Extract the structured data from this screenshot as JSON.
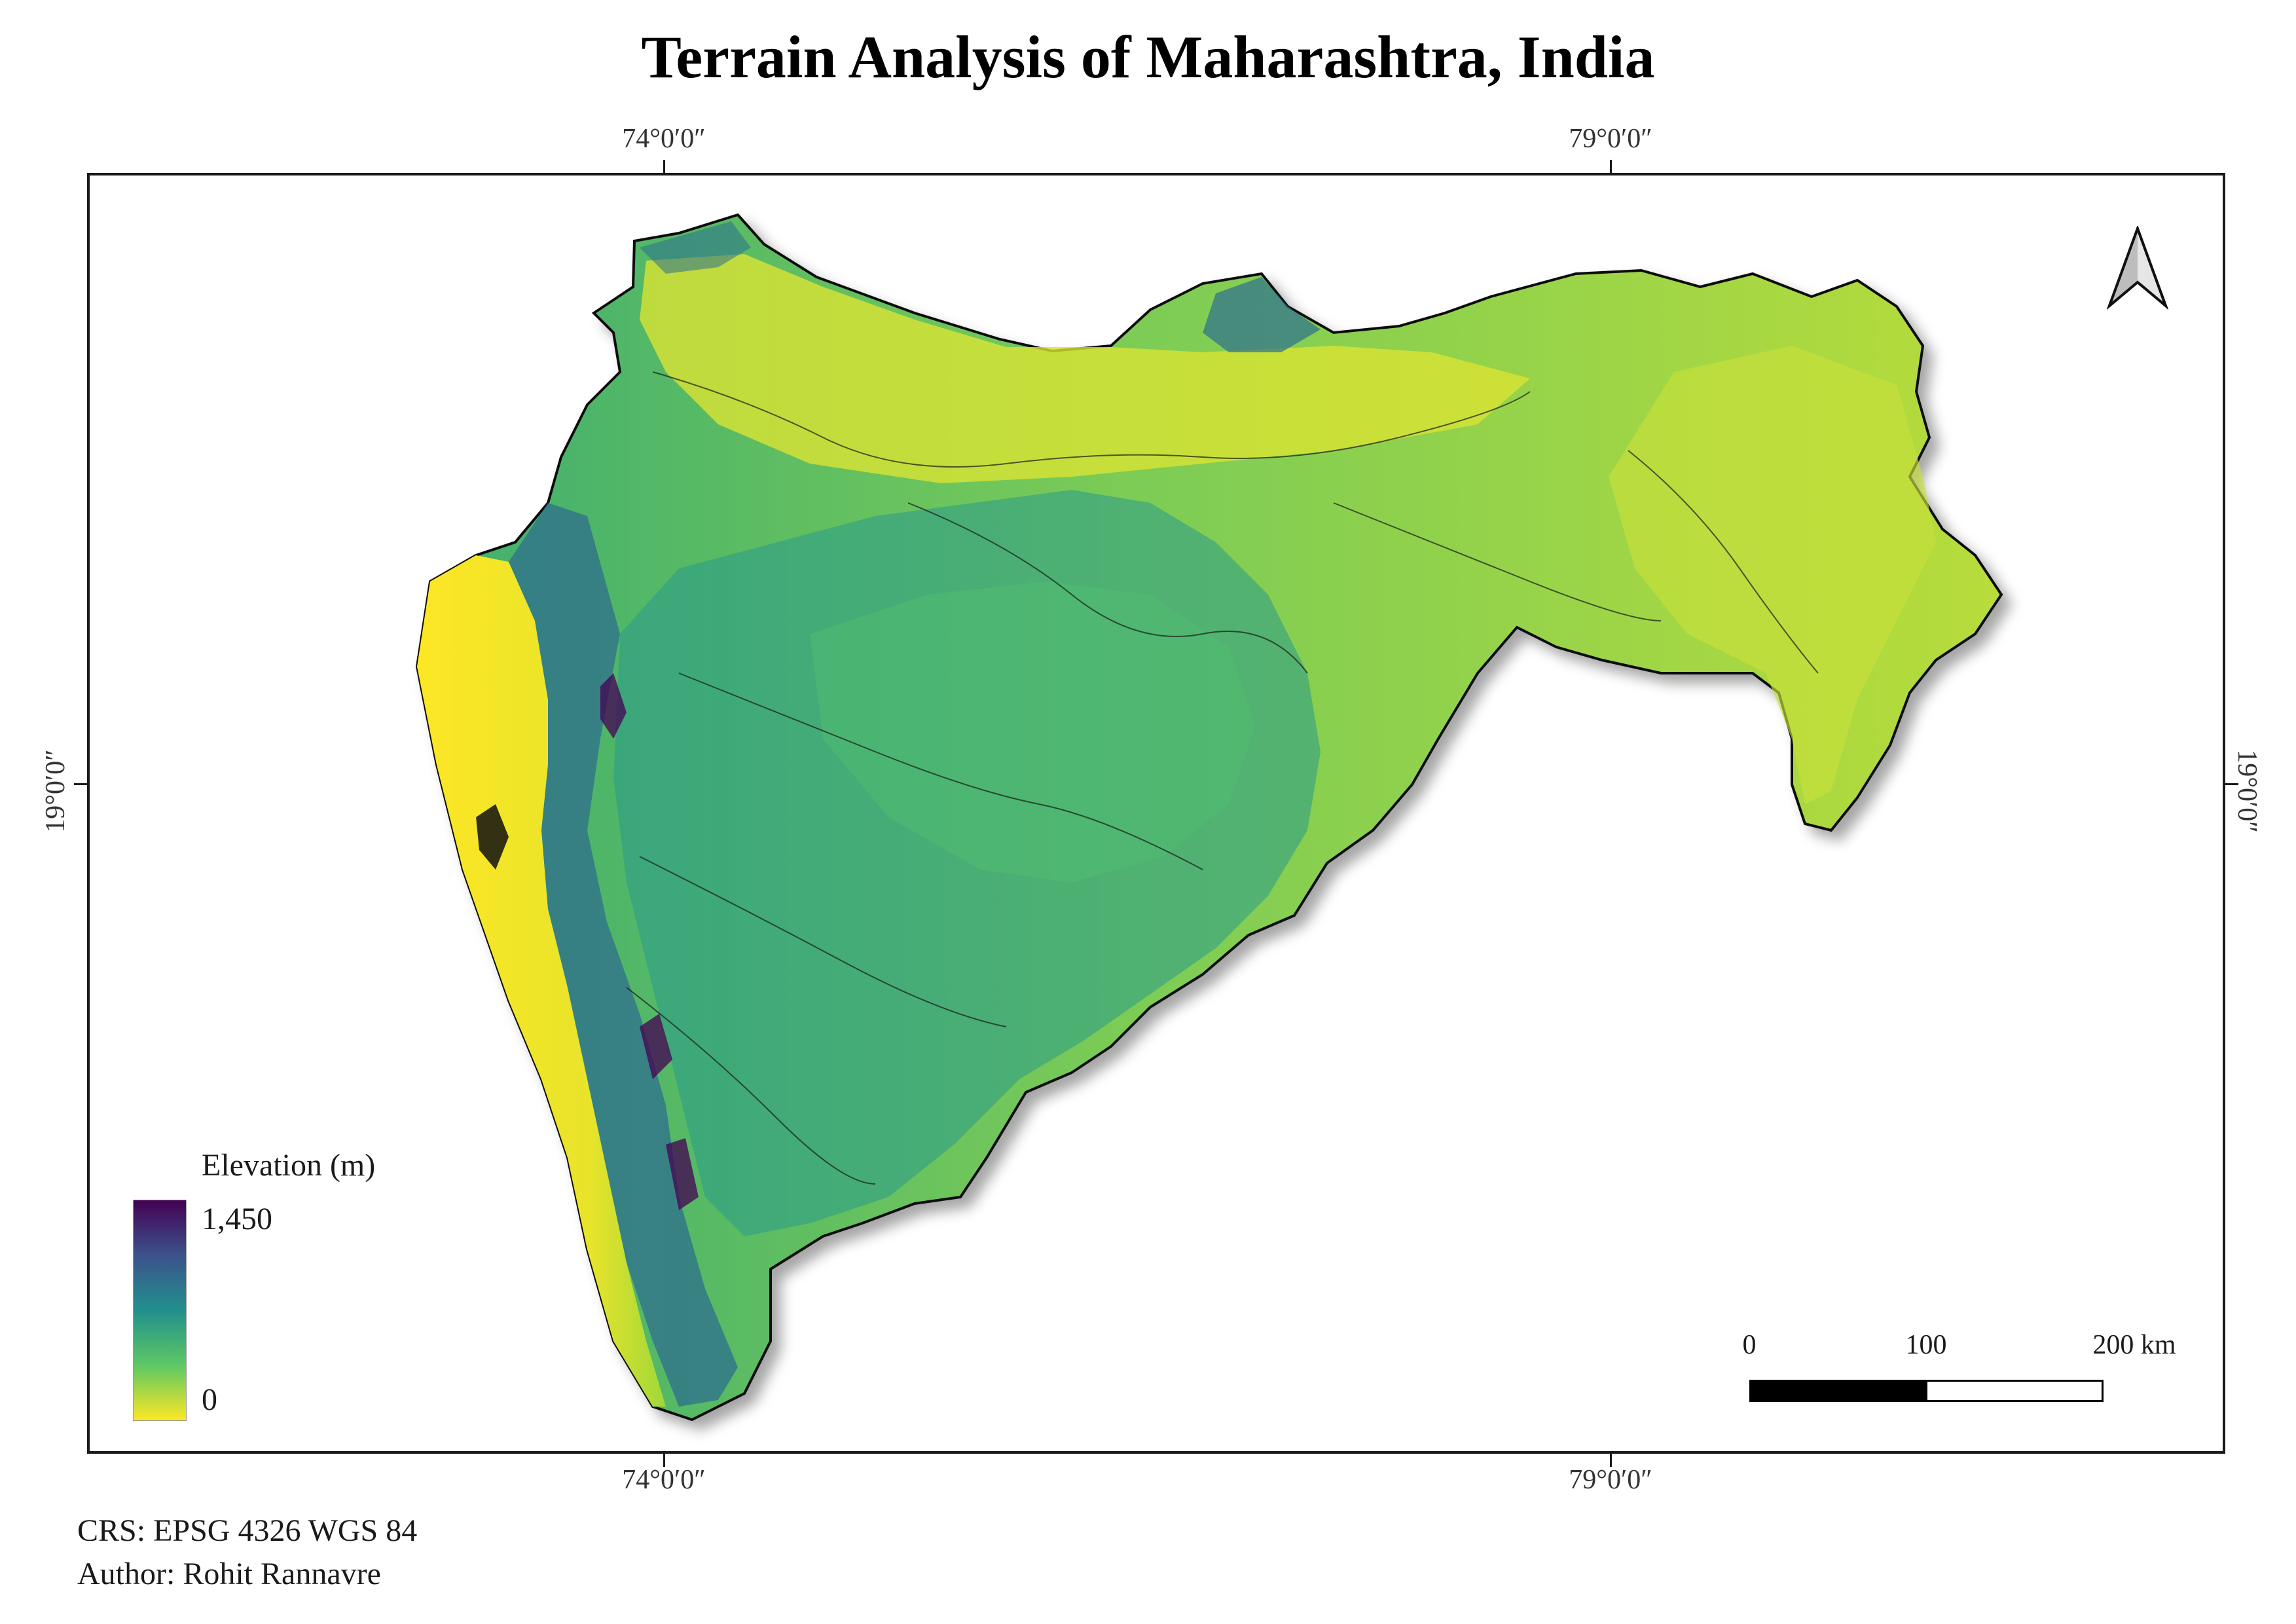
{
  "title": "Terrain Analysis of Maharashtra, India",
  "graticule": {
    "lon_west": "74°0′0″",
    "lon_east": "79°0′0″",
    "lat": "19°0′0″"
  },
  "legend": {
    "title": "Elevation (m)",
    "max_label": "1,450",
    "min_label": "0",
    "max_value": 1450,
    "min_value": 0,
    "colors": [
      "#440154",
      "#3b528b",
      "#21908d",
      "#5dc863",
      "#fde725"
    ]
  },
  "scale_bar": {
    "labels": [
      "0",
      "100",
      "200 km"
    ]
  },
  "north_arrow": {
    "icon": "north-arrow-icon"
  },
  "footer": {
    "crs": "CRS: EPSG 4326 WGS 84",
    "author": "Author: Rohit Rannavre"
  },
  "colors": {
    "lowland": "#fde725",
    "plateau": "#5dc863",
    "midland": "#21908d",
    "upland": "#3b528b",
    "peak": "#440154",
    "outline": "#111111"
  }
}
